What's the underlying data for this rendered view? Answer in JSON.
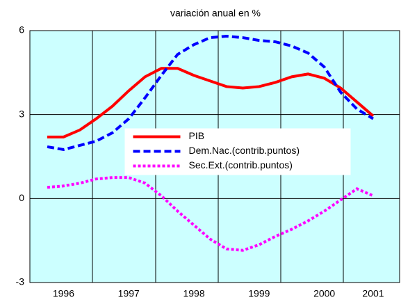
{
  "chart_data": {
    "type": "line",
    "title": "variación anual en %",
    "categories": [
      null,
      "1996",
      null,
      null,
      null,
      "1997",
      null,
      null,
      null,
      "1998",
      null,
      null,
      null,
      "1999",
      null,
      null,
      null,
      "2000",
      null,
      null,
      "2001"
    ],
    "series": [
      {
        "name": "PIB",
        "color": "#ff0000",
        "style": "solid",
        "values": [
          2.2,
          2.2,
          2.45,
          2.85,
          3.3,
          3.85,
          4.35,
          4.65,
          4.65,
          4.4,
          4.2,
          4.0,
          3.95,
          4.0,
          4.15,
          4.35,
          4.45,
          4.3,
          3.95,
          3.45,
          2.95
        ]
      },
      {
        "name": "Dem.Nac.(contrib.puntos)",
        "color": "#0000ff",
        "style": "dashed",
        "values": [
          1.85,
          1.75,
          1.9,
          2.05,
          2.35,
          2.85,
          3.6,
          4.4,
          5.15,
          5.5,
          5.75,
          5.8,
          5.75,
          5.65,
          5.6,
          5.45,
          5.2,
          4.7,
          3.8,
          3.2,
          2.85
        ]
      },
      {
        "name": "Sec.Ext.(contrib.puntos)",
        "color": "#ff00ff",
        "style": "dotted",
        "values": [
          0.4,
          0.45,
          0.55,
          0.7,
          0.75,
          0.75,
          0.55,
          0.1,
          -0.45,
          -0.95,
          -1.45,
          -1.8,
          -1.85,
          -1.65,
          -1.35,
          -1.1,
          -0.8,
          -0.45,
          -0.05,
          0.35,
          0.1
        ]
      }
    ],
    "ylim": [
      -3,
      6
    ],
    "yticks": [
      -3,
      0,
      3,
      6
    ],
    "grid": true,
    "legend": "center",
    "plot_background": "#ccffff"
  }
}
